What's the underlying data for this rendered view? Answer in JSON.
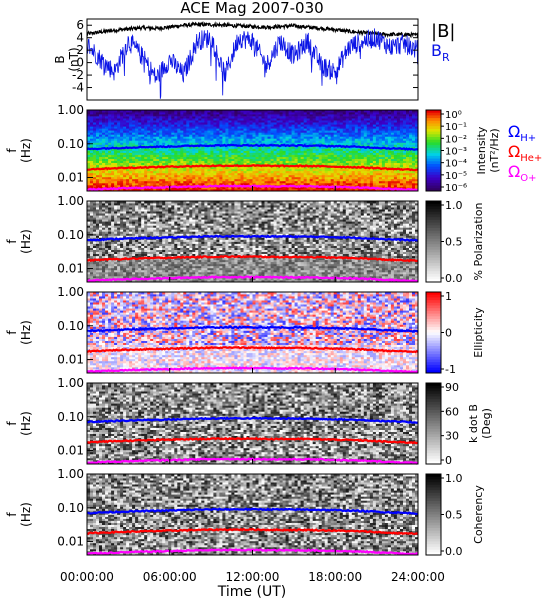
{
  "figure": {
    "title": "ACE Mag 2007-030",
    "xlabel": "Time (UT)",
    "xtick_labels": [
      "00:00:00",
      "06:00:00",
      "12:00:00",
      "18:00:00",
      "24:00:00"
    ]
  },
  "colors": {
    "magnitude": "#000000",
    "radial": "#0a14e6",
    "h_plus": "#0000ff",
    "he_plus": "#ff0000",
    "o_plus": "#ff00ff"
  },
  "legends": {
    "mag_B": "|B|",
    "br_main": "B",
    "br_sub": "R",
    "omega_h_sub": "H+",
    "omega_he_sub": "He+",
    "omega_o_sub": "O+",
    "omega_symbol": "Ω"
  },
  "chart_data": [
    {
      "type": "line",
      "panel": "magnetic-field",
      "ylabel": [
        "B",
        "(nT)"
      ],
      "ylim": [
        -6,
        7
      ],
      "yticks": [
        "6",
        "4",
        "2",
        "0",
        "-2",
        "-4"
      ],
      "x_unit": "hours UT",
      "xlim": [
        0,
        24
      ],
      "series": [
        {
          "name": "|B|",
          "x": [
            0,
            1,
            2,
            3,
            4,
            5,
            6,
            7,
            8,
            9,
            10,
            11,
            12,
            13,
            14,
            15,
            16,
            17,
            18,
            19,
            20,
            21,
            22,
            23,
            24
          ],
          "values": [
            4.6,
            4.9,
            5.2,
            5.4,
            5.6,
            5.5,
            5.7,
            6.0,
            6.1,
            6.1,
            6.0,
            5.9,
            5.8,
            5.7,
            5.8,
            5.9,
            5.7,
            5.5,
            5.3,
            5.0,
            4.8,
            4.6,
            4.5,
            4.5,
            4.4
          ]
        },
        {
          "name": "B_R",
          "x": [
            0,
            1,
            2,
            3,
            4,
            5,
            6,
            7,
            8,
            9,
            10,
            11,
            12,
            13,
            14,
            15,
            16,
            17,
            18,
            19,
            20,
            21,
            22,
            23,
            24
          ],
          "values": [
            3.0,
            0.5,
            -1.5,
            3.5,
            1.0,
            -2.5,
            0.5,
            -2.0,
            3.5,
            4.0,
            -2.0,
            4.0,
            3.5,
            -0.5,
            3.5,
            1.0,
            3.5,
            -0.5,
            -1.5,
            2.5,
            3.5,
            4.0,
            2.5,
            3.0,
            2.0
          ]
        }
      ]
    },
    {
      "type": "heatmap",
      "panel": "intensity",
      "ylabel": [
        "f",
        "(Hz)"
      ],
      "ylim": [
        0.004,
        1.0
      ],
      "yscale": "log",
      "yticks": [
        "1.00",
        "0.10",
        "0.01"
      ],
      "colorbar_label": [
        "Intensity",
        "(nT²/Hz)"
      ],
      "colorbar_ticks": [
        "10⁰",
        "10⁻¹",
        "10⁻²",
        "10⁻³",
        "10⁻⁴",
        "10⁻⁵",
        "10⁻⁶"
      ],
      "colormap": "rainbow"
    },
    {
      "type": "heatmap",
      "panel": "polarization",
      "ylabel": [
        "f",
        "(Hz)"
      ],
      "ylim": [
        0.004,
        1.0
      ],
      "yscale": "log",
      "yticks": [
        "1.00",
        "0.10",
        "0.01"
      ],
      "colorbar_label": [
        "% Polarization"
      ],
      "colorbar_ticks": [
        "1.0",
        "0.5",
        "0.0"
      ],
      "colormap": "grayscale"
    },
    {
      "type": "heatmap",
      "panel": "ellipticity",
      "ylabel": [
        "f",
        "(Hz)"
      ],
      "ylim": [
        0.004,
        1.0
      ],
      "yscale": "log",
      "yticks": [
        "1.00",
        "0.10",
        "0.01"
      ],
      "colorbar_label": [
        "Ellipticity"
      ],
      "colorbar_ticks": [
        "1",
        "0",
        "-1"
      ],
      "colormap": "blue-white-red"
    },
    {
      "type": "heatmap",
      "panel": "k-dot-b",
      "ylabel": [
        "f",
        "(Hz)"
      ],
      "ylim": [
        0.004,
        1.0
      ],
      "yscale": "log",
      "yticks": [
        "1.00",
        "0.10",
        "0.01"
      ],
      "colorbar_label": [
        "k dot B",
        "(Deg)"
      ],
      "colorbar_ticks": [
        "90",
        "60",
        "30",
        "0"
      ],
      "colormap": "grayscale"
    },
    {
      "type": "heatmap",
      "panel": "coherency",
      "ylabel": [
        "f",
        "(Hz)"
      ],
      "ylim": [
        0.004,
        1.0
      ],
      "yscale": "log",
      "yticks": [
        "1.00",
        "0.10",
        "0.01"
      ],
      "colorbar_label": [
        "Coherency"
      ],
      "colorbar_ticks": [
        "1.0",
        "0.5",
        "0.0"
      ],
      "colormap": "grayscale"
    }
  ],
  "gyrofrequency_lines": {
    "x": [
      0,
      2,
      4,
      6,
      8,
      10,
      12,
      14,
      16,
      18,
      20,
      22,
      24
    ],
    "H+": [
      0.07,
      0.075,
      0.08,
      0.083,
      0.088,
      0.09,
      0.09,
      0.089,
      0.088,
      0.085,
      0.08,
      0.073,
      0.068
    ],
    "He+": [
      0.0175,
      0.019,
      0.02,
      0.021,
      0.022,
      0.0225,
      0.0225,
      0.022,
      0.022,
      0.021,
      0.02,
      0.018,
      0.017
    ],
    "O+": [
      0.0044,
      0.0047,
      0.005,
      0.0052,
      0.0055,
      0.0056,
      0.0056,
      0.0055,
      0.0055,
      0.0053,
      0.005,
      0.0046,
      0.0043
    ]
  }
}
